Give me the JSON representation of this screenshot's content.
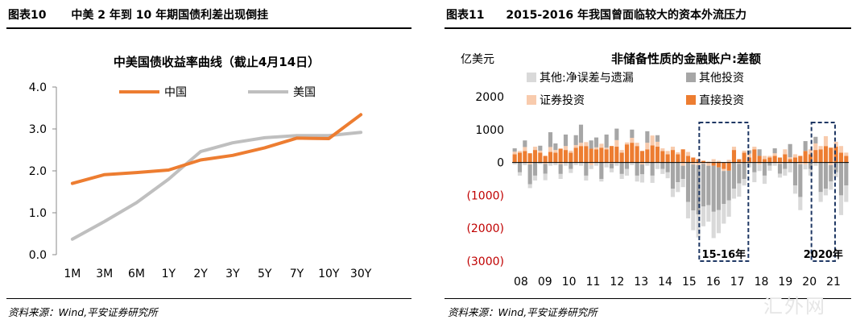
{
  "left_panel": {
    "figure_label": "图表10",
    "figure_title": "中美 2 年到 10 年期国债利差出现倒挂",
    "source": "资料来源：Wind,平安证券研究所"
  },
  "right_panel": {
    "figure_label": "图表11",
    "figure_title": "2015-2016 年我国曾面临较大的资本外流压力",
    "source": "资料来源：Wind,平安证券研究所"
  },
  "watermark": "汇外网",
  "chart_data": [
    {
      "type": "line",
      "title": "中美国债收益率曲线（截止4月14日）",
      "categories": [
        "1M",
        "3M",
        "6M",
        "1Y",
        "2Y",
        "3Y",
        "5Y",
        "7Y",
        "10Y",
        "30Y"
      ],
      "series": [
        {
          "name": "中国",
          "color": "#ED7D31",
          "values": [
            1.7,
            1.91,
            1.96,
            2.02,
            2.26,
            2.37,
            2.55,
            2.78,
            2.77,
            3.34
          ]
        },
        {
          "name": "美国",
          "color": "#BFBFBF",
          "values": [
            0.37,
            0.79,
            1.24,
            1.8,
            2.46,
            2.67,
            2.79,
            2.84,
            2.84,
            2.92
          ]
        }
      ],
      "ylim": [
        0,
        4
      ],
      "yticks": [
        "0.0",
        "1.0",
        "2.0",
        "3.0",
        "4.0"
      ],
      "legend_position": "top",
      "grid": false
    },
    {
      "type": "bar",
      "stacked": true,
      "title": "非储备性质的金融账户:差额",
      "ylabel": "亿美元",
      "ylim": [
        -3000,
        2000
      ],
      "yticks": [
        {
          "v": 2000,
          "label": "2000",
          "color": "#000000"
        },
        {
          "v": 1000,
          "label": "1000",
          "color": "#000000"
        },
        {
          "v": 0,
          "label": "0",
          "color": "#000000"
        },
        {
          "v": -1000,
          "label": "(1000)",
          "color": "#C00000"
        },
        {
          "v": -2000,
          "label": "(2000)",
          "color": "#C00000"
        },
        {
          "v": -3000,
          "label": "(3000)",
          "color": "#C00000"
        }
      ],
      "year_labels": [
        "08",
        "09",
        "10",
        "11",
        "12",
        "13",
        "14",
        "15",
        "16",
        "17",
        "18",
        "19",
        "20",
        "21"
      ],
      "legend_position": "top",
      "series_meta": [
        {
          "name": "其他:净误差与遗漏",
          "color": "#D9D9D9"
        },
        {
          "name": "其他投资",
          "color": "#A6A6A6"
        },
        {
          "name": "证券投资",
          "color": "#F8CBAD"
        },
        {
          "name": "直接投资",
          "color": "#ED7D31"
        }
      ],
      "series": [
        {
          "name": "直接投资",
          "values": [
            250,
            300,
            350,
            280,
            380,
            300,
            200,
            320,
            300,
            420,
            380,
            300,
            450,
            500,
            500,
            420,
            400,
            450,
            400,
            500,
            480,
            300,
            550,
            600,
            500,
            350,
            400,
            520,
            480,
            350,
            250,
            380,
            250,
            400,
            200,
            150,
            100,
            50,
            20,
            -100,
            -150,
            -200,
            -250,
            380,
            100,
            300,
            150,
            400,
            200,
            100,
            150,
            200,
            150,
            250,
            100,
            150,
            200,
            350,
            250,
            380,
            400,
            500,
            450,
            480,
            300,
            200
          ]
        },
        {
          "name": "证券投资",
          "values": [
            80,
            50,
            120,
            -60,
            100,
            60,
            -40,
            150,
            80,
            -50,
            120,
            60,
            80,
            100,
            120,
            -80,
            60,
            120,
            50,
            -30,
            200,
            80,
            60,
            150,
            100,
            -60,
            200,
            300,
            150,
            80,
            100,
            100,
            60,
            -100,
            120,
            -60,
            -80,
            -40,
            -100,
            100,
            50,
            -60,
            80,
            100,
            -40,
            60,
            120,
            80,
            -60,
            100,
            50,
            80,
            -40,
            150,
            60,
            100,
            -50,
            -60,
            150,
            200,
            100,
            300,
            -80,
            150,
            200,
            100
          ]
        },
        {
          "name": "其他投资",
          "values": [
            100,
            -300,
            200,
            -600,
            -400,
            150,
            -300,
            450,
            200,
            -300,
            350,
            -200,
            300,
            550,
            -400,
            250,
            300,
            -500,
            400,
            -150,
            350,
            -350,
            -200,
            250,
            -400,
            -300,
            350,
            -400,
            200,
            -200,
            -300,
            -800,
            -600,
            -400,
            -1200,
            -1400,
            -1500,
            -1300,
            -1200,
            -1400,
            -1300,
            -1000,
            -900,
            -800,
            -600,
            -500,
            100,
            -300,
            200,
            -400,
            -100,
            150,
            -300,
            -200,
            400,
            -700,
            -1000,
            300,
            -200,
            200,
            -900,
            -800,
            -500,
            -300,
            -1000,
            -700
          ]
        },
        {
          "name": "其他:净误差与遗漏",
          "values": [
            -60,
            -100,
            -80,
            -120,
            -150,
            -50,
            -200,
            -100,
            -80,
            -150,
            -100,
            -120,
            -80,
            -100,
            -150,
            -120,
            -100,
            -80,
            -150,
            -120,
            -100,
            -150,
            -200,
            -80,
            -180,
            -250,
            -100,
            -220,
            -200,
            -150,
            -180,
            -250,
            -300,
            -250,
            -500,
            -600,
            -700,
            -600,
            -500,
            -800,
            -700,
            -600,
            -500,
            -300,
            -400,
            -200,
            -150,
            -300,
            -200,
            -250,
            -150,
            -100,
            -120,
            -200,
            -300,
            -250,
            -400,
            -150,
            -200,
            -100,
            -300,
            -200,
            -250,
            -150,
            -600,
            -500
          ]
        }
      ],
      "annotations": [
        {
          "text": "15-16年",
          "from": 37,
          "to": 45
        },
        {
          "text": "2020年",
          "from": 59,
          "to": 62
        }
      ]
    }
  ]
}
